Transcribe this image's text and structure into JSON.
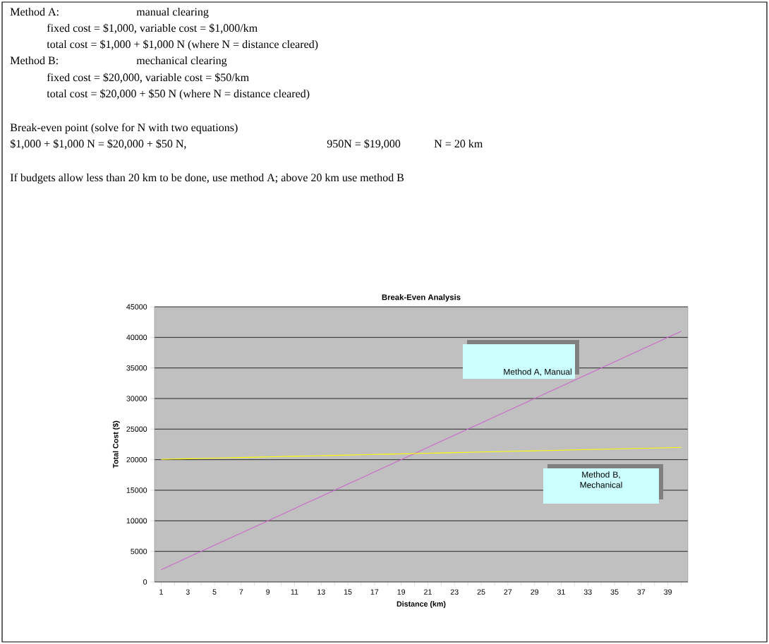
{
  "chart_data": {
    "type": "line",
    "title": "Break-Even Analysis",
    "xlabel": "Distance (km)",
    "ylabel": "Total Cost ($)",
    "annotations": [
      "Method A:",
      "manual clearing",
      "fixed cost = $1,000, variable cost = $1,000/km",
      "total cost = $1,000 + $1,000 N (where N = distance cleared)",
      "Method B:",
      "mechanical clearing",
      "fixed cost = $20,000, variable cost = $50/km",
      "total cost = $20,000 + $50 N (where N = distance cleared)",
      "Break-even point (solve for N with two equations)",
      "$1,000 + $1,000 N = $20,000 + $50 N,",
      "950N = $19,000",
      "N = 20 km",
      "If budgets allow less than 20 km to be done, use method A; above 20 km use method B"
    ],
    "categories": [
      "1",
      null,
      "3",
      null,
      "5",
      null,
      "7",
      null,
      "9",
      null,
      "11",
      null,
      "13",
      null,
      "15",
      null,
      "17",
      null,
      "19",
      null,
      "21",
      null,
      "23",
      null,
      "25",
      null,
      "27",
      null,
      "29",
      null,
      "31",
      null,
      "33",
      null,
      "35",
      null,
      "37",
      null,
      "39",
      null
    ],
    "series": [
      {
        "name": "Method A, Manual",
        "color": "#cc66cc",
        "values": [
          2000,
          3000,
          4000,
          5000,
          6000,
          7000,
          8000,
          9000,
          10000,
          11000,
          12000,
          13000,
          14000,
          15000,
          16000,
          17000,
          18000,
          19000,
          20000,
          21000,
          22000,
          23000,
          24000,
          25000,
          26000,
          27000,
          28000,
          29000,
          30000,
          31000,
          32000,
          33000,
          34000,
          35000,
          36000,
          37000,
          38000,
          39000,
          40000,
          41000
        ]
      },
      {
        "name": "Method B, Mechanical",
        "color": "#ffff00",
        "values": [
          20050,
          20100,
          20150,
          20200,
          20250,
          20300,
          20350,
          20400,
          20450,
          20500,
          20550,
          20600,
          20650,
          20700,
          20750,
          20800,
          20850,
          20900,
          20950,
          21000,
          21050,
          21100,
          21150,
          21200,
          21250,
          21300,
          21350,
          21400,
          21450,
          21500,
          21550,
          21600,
          21650,
          21700,
          21750,
          21800,
          21850,
          21900,
          21950,
          22000
        ]
      }
    ],
    "ylim": [
      0,
      45000
    ],
    "yticks": [
      0,
      5000,
      10000,
      15000,
      20000,
      25000,
      30000,
      35000,
      40000,
      45000
    ],
    "grid": "y"
  }
}
